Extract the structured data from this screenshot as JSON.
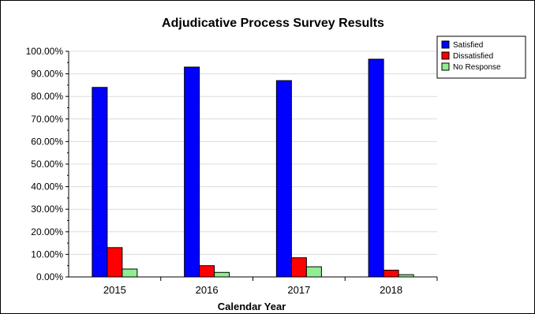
{
  "chart_data": {
    "type": "bar",
    "title": "Adjudicative Process Survey Results",
    "xlabel": "Calendar Year",
    "ylabel": "",
    "categories": [
      "2015",
      "2016",
      "2017",
      "2018"
    ],
    "series": [
      {
        "name": "Satisfied",
        "color": "#0000ff",
        "values": [
          84.0,
          93.0,
          87.0,
          96.5
        ]
      },
      {
        "name": "Dissatisfied",
        "color": "#ff0000",
        "values": [
          13.0,
          5.0,
          8.5,
          3.0
        ]
      },
      {
        "name": "No Response",
        "color": "#90ee90",
        "values": [
          3.5,
          2.0,
          4.5,
          1.0
        ]
      }
    ],
    "ylim": [
      0,
      100
    ],
    "yticks": [
      "0.00%",
      "10.00%",
      "20.00%",
      "30.00%",
      "40.00%",
      "50.00%",
      "60.00%",
      "70.00%",
      "80.00%",
      "90.00%",
      "100.00%"
    ],
    "grid": true,
    "legend": "top-right"
  }
}
